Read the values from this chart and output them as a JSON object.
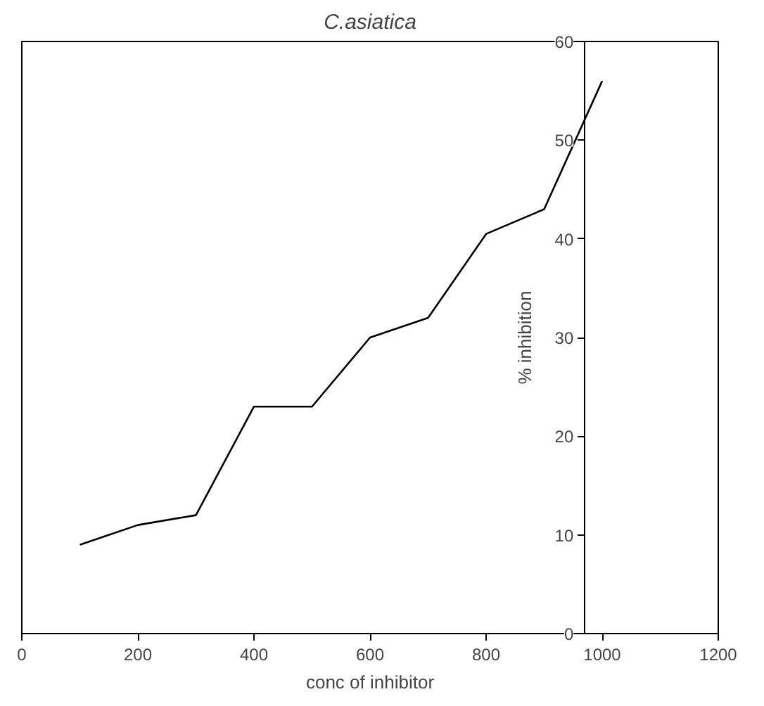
{
  "chart_data": {
    "type": "line",
    "title": "C.asiatica",
    "xlabel": "conc of inhibitor",
    "ylabel": "% inhibition",
    "x": [
      100,
      200,
      300,
      400,
      500,
      600,
      700,
      800,
      900,
      1000
    ],
    "series": [
      {
        "color": "#000000",
        "values": [
          9,
          11,
          12,
          23,
          23,
          30,
          32,
          40.5,
          43,
          56
        ]
      }
    ],
    "xlim": [
      0,
      1200
    ],
    "ylim": [
      0,
      60
    ],
    "xticks": [
      0,
      200,
      400,
      600,
      800,
      1000,
      1200
    ],
    "yticks": [
      0,
      10,
      20,
      30,
      40,
      50,
      60
    ],
    "grid": false,
    "marker": "none",
    "line_style": "solid"
  }
}
